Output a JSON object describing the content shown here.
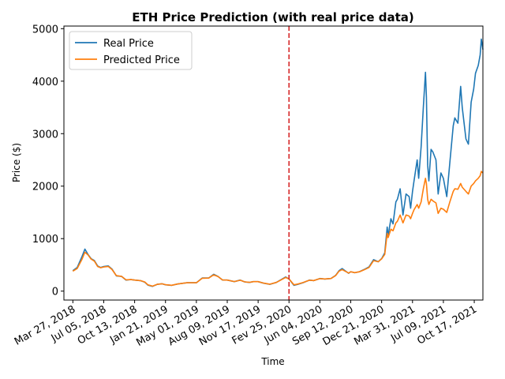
{
  "chart_data": {
    "type": "line",
    "title": "ETH Price Prediction (with real price data)",
    "xlabel": "Time",
    "ylabel": "Price ($)",
    "ylim": [
      -170,
      5050
    ],
    "yticks": [
      0,
      1000,
      2000,
      3000,
      4000,
      5000
    ],
    "xticks": [
      "Mar 27, 2018",
      "Jul 05, 2018",
      "Oct 13, 2018",
      "Jan 21, 2019",
      "May 01, 2019",
      "Aug 09, 2019",
      "Nov 17, 2019",
      "Fev 25, 2020",
      "Jun 04, 2020",
      "Sep 12, 2020",
      "Dec 21, 2020",
      "Mar 31, 2021",
      "Jul 09, 2021",
      "Oct 17, 2021"
    ],
    "xtick_dates": [
      "2018-03-27",
      "2018-07-05",
      "2018-10-13",
      "2019-01-21",
      "2019-05-01",
      "2019-08-09",
      "2019-11-17",
      "2020-02-25",
      "2020-06-04",
      "2020-09-12",
      "2020-12-21",
      "2021-03-31",
      "2021-07-09",
      "2021-10-17"
    ],
    "xlim": [
      "2018-02-26",
      "2021-11-14"
    ],
    "split_date": "2020-02-25",
    "split_color": "#d62728",
    "legend": "upper-left",
    "grid": false,
    "series": [
      {
        "name": "Real Price",
        "color": "#1f77b4",
        "points": [
          [
            "2018-03-27",
            390
          ],
          [
            "2018-04-10",
            450
          ],
          [
            "2018-04-25",
            650
          ],
          [
            "2018-05-05",
            800
          ],
          [
            "2018-05-15",
            700
          ],
          [
            "2018-05-25",
            620
          ],
          [
            "2018-06-05",
            580
          ],
          [
            "2018-06-15",
            480
          ],
          [
            "2018-06-25",
            450
          ],
          [
            "2018-07-05",
            470
          ],
          [
            "2018-07-20",
            480
          ],
          [
            "2018-08-01",
            420
          ],
          [
            "2018-08-15",
            290
          ],
          [
            "2018-09-01",
            280
          ],
          [
            "2018-09-15",
            210
          ],
          [
            "2018-10-01",
            220
          ],
          [
            "2018-10-13",
            210
          ],
          [
            "2018-11-01",
            200
          ],
          [
            "2018-11-15",
            170
          ],
          [
            "2018-11-25",
            115
          ],
          [
            "2018-12-10",
            90
          ],
          [
            "2018-12-25",
            130
          ],
          [
            "2019-01-10",
            140
          ],
          [
            "2019-01-21",
            120
          ],
          [
            "2019-02-10",
            110
          ],
          [
            "2019-03-01",
            135
          ],
          [
            "2019-04-01",
            160
          ],
          [
            "2019-05-01",
            160
          ],
          [
            "2019-05-20",
            250
          ],
          [
            "2019-06-10",
            250
          ],
          [
            "2019-06-26",
            320
          ],
          [
            "2019-07-10",
            280
          ],
          [
            "2019-07-25",
            210
          ],
          [
            "2019-08-09",
            210
          ],
          [
            "2019-09-01",
            180
          ],
          [
            "2019-09-20",
            210
          ],
          [
            "2019-10-05",
            175
          ],
          [
            "2019-10-20",
            165
          ],
          [
            "2019-11-01",
            180
          ],
          [
            "2019-11-17",
            180
          ],
          [
            "2019-12-05",
            150
          ],
          [
            "2019-12-25",
            130
          ],
          [
            "2020-01-15",
            165
          ],
          [
            "2020-02-14",
            270
          ],
          [
            "2020-02-25",
            230
          ],
          [
            "2020-03-12",
            110
          ],
          [
            "2020-03-25",
            130
          ],
          [
            "2020-04-10",
            160
          ],
          [
            "2020-05-01",
            210
          ],
          [
            "2020-05-15",
            200
          ],
          [
            "2020-06-04",
            240
          ],
          [
            "2020-06-20",
            230
          ],
          [
            "2020-07-10",
            240
          ],
          [
            "2020-07-25",
            300
          ],
          [
            "2020-08-05",
            390
          ],
          [
            "2020-08-15",
            430
          ],
          [
            "2020-09-05",
            340
          ],
          [
            "2020-09-12",
            370
          ],
          [
            "2020-09-25",
            350
          ],
          [
            "2020-10-10",
            370
          ],
          [
            "2020-10-25",
            410
          ],
          [
            "2020-11-10",
            460
          ],
          [
            "2020-11-25",
            600
          ],
          [
            "2020-12-10",
            560
          ],
          [
            "2020-12-21",
            620
          ],
          [
            "2020-12-31",
            730
          ],
          [
            "2021-01-08",
            1220
          ],
          [
            "2021-01-11",
            1050
          ],
          [
            "2021-01-20",
            1380
          ],
          [
            "2021-01-27",
            1280
          ],
          [
            "2021-02-05",
            1700
          ],
          [
            "2021-02-10",
            1750
          ],
          [
            "2021-02-19",
            1950
          ],
          [
            "2021-02-28",
            1450
          ],
          [
            "2021-03-10",
            1850
          ],
          [
            "2021-03-20",
            1800
          ],
          [
            "2021-03-25",
            1580
          ],
          [
            "2021-03-31",
            1900
          ],
          [
            "2021-04-05",
            2100
          ],
          [
            "2021-04-15",
            2500
          ],
          [
            "2021-04-20",
            2150
          ],
          [
            "2021-04-28",
            2750
          ],
          [
            "2021-05-05",
            3500
          ],
          [
            "2021-05-12",
            4170
          ],
          [
            "2021-05-15",
            3700
          ],
          [
            "2021-05-19",
            2400
          ],
          [
            "2021-05-23",
            2100
          ],
          [
            "2021-05-30",
            2700
          ],
          [
            "2021-06-05",
            2650
          ],
          [
            "2021-06-15",
            2500
          ],
          [
            "2021-06-22",
            1850
          ],
          [
            "2021-07-01",
            2250
          ],
          [
            "2021-07-09",
            2150
          ],
          [
            "2021-07-20",
            1800
          ],
          [
            "2021-07-30",
            2450
          ],
          [
            "2021-08-10",
            3150
          ],
          [
            "2021-08-15",
            3300
          ],
          [
            "2021-08-25",
            3200
          ],
          [
            "2021-09-03",
            3900
          ],
          [
            "2021-09-08",
            3500
          ],
          [
            "2021-09-20",
            2900
          ],
          [
            "2021-09-28",
            2800
          ],
          [
            "2021-10-07",
            3600
          ],
          [
            "2021-10-15",
            3850
          ],
          [
            "2021-10-21",
            4150
          ],
          [
            "2021-10-30",
            4300
          ],
          [
            "2021-11-05",
            4500
          ],
          [
            "2021-11-09",
            4800
          ],
          [
            "2021-11-14",
            4600
          ]
        ]
      },
      {
        "name": "Predicted Price",
        "color": "#ff7f0e",
        "points": [
          [
            "2018-03-27",
            380
          ],
          [
            "2018-04-10",
            430
          ],
          [
            "2018-04-25",
            600
          ],
          [
            "2018-05-05",
            740
          ],
          [
            "2018-05-15",
            690
          ],
          [
            "2018-05-25",
            610
          ],
          [
            "2018-06-05",
            570
          ],
          [
            "2018-06-15",
            470
          ],
          [
            "2018-06-25",
            445
          ],
          [
            "2018-07-05",
            460
          ],
          [
            "2018-07-20",
            470
          ],
          [
            "2018-08-01",
            410
          ],
          [
            "2018-08-15",
            295
          ],
          [
            "2018-09-01",
            280
          ],
          [
            "2018-09-15",
            215
          ],
          [
            "2018-10-01",
            220
          ],
          [
            "2018-10-13",
            210
          ],
          [
            "2018-11-01",
            200
          ],
          [
            "2018-11-15",
            175
          ],
          [
            "2018-11-25",
            120
          ],
          [
            "2018-12-10",
            95
          ],
          [
            "2018-12-25",
            130
          ],
          [
            "2019-01-10",
            140
          ],
          [
            "2019-01-21",
            122
          ],
          [
            "2019-02-10",
            112
          ],
          [
            "2019-03-01",
            135
          ],
          [
            "2019-04-01",
            160
          ],
          [
            "2019-05-01",
            160
          ],
          [
            "2019-05-20",
            245
          ],
          [
            "2019-06-10",
            248
          ],
          [
            "2019-06-26",
            310
          ],
          [
            "2019-07-10",
            278
          ],
          [
            "2019-07-25",
            212
          ],
          [
            "2019-08-09",
            210
          ],
          [
            "2019-09-01",
            182
          ],
          [
            "2019-09-20",
            208
          ],
          [
            "2019-10-05",
            176
          ],
          [
            "2019-10-20",
            167
          ],
          [
            "2019-11-01",
            180
          ],
          [
            "2019-11-17",
            180
          ],
          [
            "2019-12-05",
            152
          ],
          [
            "2019-12-25",
            132
          ],
          [
            "2020-01-15",
            165
          ],
          [
            "2020-02-14",
            260
          ],
          [
            "2020-02-25",
            232
          ],
          [
            "2020-03-12",
            120
          ],
          [
            "2020-03-25",
            135
          ],
          [
            "2020-04-10",
            162
          ],
          [
            "2020-05-01",
            208
          ],
          [
            "2020-05-15",
            202
          ],
          [
            "2020-06-04",
            238
          ],
          [
            "2020-06-20",
            232
          ],
          [
            "2020-07-10",
            240
          ],
          [
            "2020-07-25",
            295
          ],
          [
            "2020-08-05",
            380
          ],
          [
            "2020-08-15",
            410
          ],
          [
            "2020-09-05",
            345
          ],
          [
            "2020-09-12",
            368
          ],
          [
            "2020-09-25",
            352
          ],
          [
            "2020-10-10",
            368
          ],
          [
            "2020-10-25",
            405
          ],
          [
            "2020-11-10",
            450
          ],
          [
            "2020-11-25",
            580
          ],
          [
            "2020-12-10",
            560
          ],
          [
            "2020-12-21",
            615
          ],
          [
            "2020-12-31",
            700
          ],
          [
            "2021-01-08",
            1100
          ],
          [
            "2021-01-11",
            1020
          ],
          [
            "2021-01-20",
            1180
          ],
          [
            "2021-01-27",
            1150
          ],
          [
            "2021-02-05",
            1300
          ],
          [
            "2021-02-10",
            1330
          ],
          [
            "2021-02-19",
            1450
          ],
          [
            "2021-02-28",
            1300
          ],
          [
            "2021-03-10",
            1450
          ],
          [
            "2021-03-20",
            1430
          ],
          [
            "2021-03-25",
            1380
          ],
          [
            "2021-03-31",
            1480
          ],
          [
            "2021-04-05",
            1550
          ],
          [
            "2021-04-15",
            1650
          ],
          [
            "2021-04-20",
            1580
          ],
          [
            "2021-04-28",
            1700
          ],
          [
            "2021-05-05",
            1950
          ],
          [
            "2021-05-12",
            2150
          ],
          [
            "2021-05-15",
            2050
          ],
          [
            "2021-05-19",
            1750
          ],
          [
            "2021-05-23",
            1650
          ],
          [
            "2021-05-30",
            1750
          ],
          [
            "2021-06-05",
            1720
          ],
          [
            "2021-06-15",
            1680
          ],
          [
            "2021-06-22",
            1480
          ],
          [
            "2021-07-01",
            1580
          ],
          [
            "2021-07-09",
            1560
          ],
          [
            "2021-07-20",
            1500
          ],
          [
            "2021-07-30",
            1700
          ],
          [
            "2021-08-10",
            1900
          ],
          [
            "2021-08-15",
            1950
          ],
          [
            "2021-08-25",
            1940
          ],
          [
            "2021-09-03",
            2050
          ],
          [
            "2021-09-08",
            1980
          ],
          [
            "2021-09-20",
            1900
          ],
          [
            "2021-09-28",
            1850
          ],
          [
            "2021-10-07",
            2000
          ],
          [
            "2021-10-15",
            2050
          ],
          [
            "2021-10-21",
            2100
          ],
          [
            "2021-10-30",
            2150
          ],
          [
            "2021-11-05",
            2200
          ],
          [
            "2021-11-09",
            2280
          ],
          [
            "2021-11-14",
            2250
          ]
        ]
      }
    ]
  }
}
